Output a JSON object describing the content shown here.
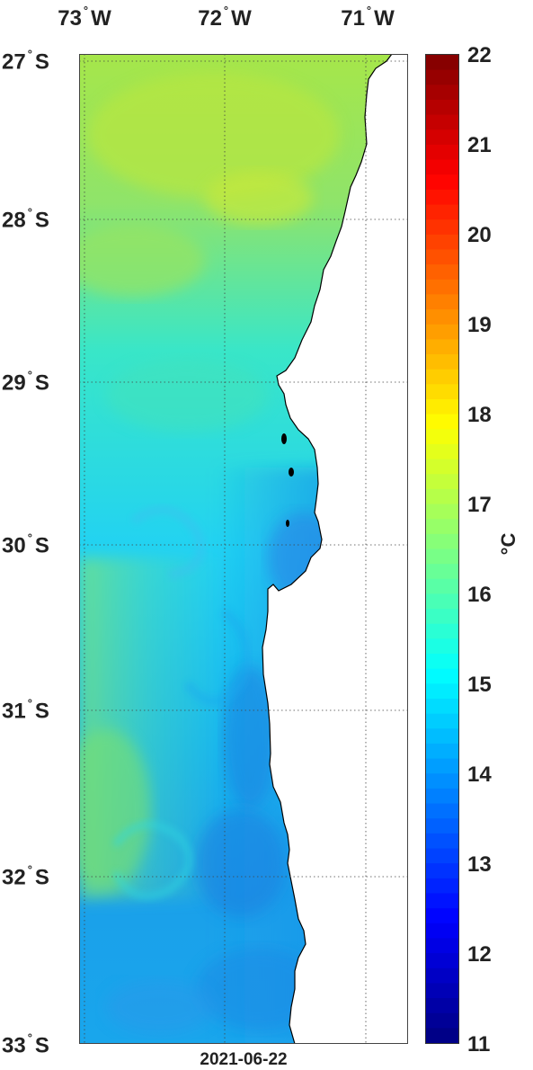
{
  "map": {
    "date": "2021-06-22",
    "lon_labels": [
      {
        "deg": "73",
        "hem": "W"
      },
      {
        "deg": "72",
        "hem": "W"
      },
      {
        "deg": "71",
        "hem": "W"
      }
    ],
    "lat_labels": [
      {
        "deg": "27",
        "hem": "S"
      },
      {
        "deg": "28",
        "hem": "S"
      },
      {
        "deg": "29",
        "hem": "S"
      },
      {
        "deg": "30",
        "hem": "S"
      },
      {
        "deg": "31",
        "hem": "S"
      },
      {
        "deg": "32",
        "hem": "S"
      },
      {
        "deg": "33",
        "hem": "S"
      }
    ],
    "lon_range": [
      -73,
      -70.7
    ],
    "lat_range": [
      -33,
      -27
    ],
    "land_color": "#ffffff",
    "coast_color": "#000000",
    "grid": "dotted"
  },
  "colorbar": {
    "unit": "°C",
    "ticks": [
      "22",
      "21",
      "20",
      "19",
      "18",
      "17",
      "16",
      "15",
      "14",
      "13",
      "12",
      "11"
    ],
    "range": [
      11,
      22
    ],
    "colormap": "jet"
  }
}
